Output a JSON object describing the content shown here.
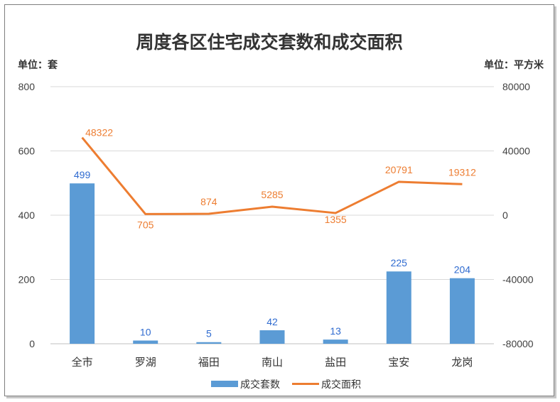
{
  "chart_data": {
    "type": "bar+line",
    "title": "周度各区住宅成交套数和成交面积",
    "left_unit": "单位：套",
    "right_unit": "单位：平方米",
    "categories": [
      "全市",
      "罗湖",
      "福田",
      "南山",
      "盐田",
      "宝安",
      "龙岗"
    ],
    "series": [
      {
        "name": "成交套数",
        "type": "bar",
        "axis": "left",
        "color": "#5b9bd5",
        "values": [
          499,
          10,
          5,
          42,
          13,
          225,
          204
        ]
      },
      {
        "name": "成交面积",
        "type": "line",
        "axis": "right",
        "color": "#ed7d31",
        "values": [
          48322,
          705,
          874,
          5285,
          1355,
          20791,
          19312
        ]
      }
    ],
    "left_axis": {
      "min": 0,
      "max": 800,
      "ticks": [
        "0",
        "200",
        "400",
        "600",
        "800"
      ]
    },
    "right_axis": {
      "min": -80000,
      "max": 80000,
      "ticks": [
        "-80000",
        "-40000",
        "0",
        "40000",
        "80000"
      ]
    },
    "grid": true,
    "legend": "bottom",
    "bar_label_color": "#2f6bd0"
  }
}
